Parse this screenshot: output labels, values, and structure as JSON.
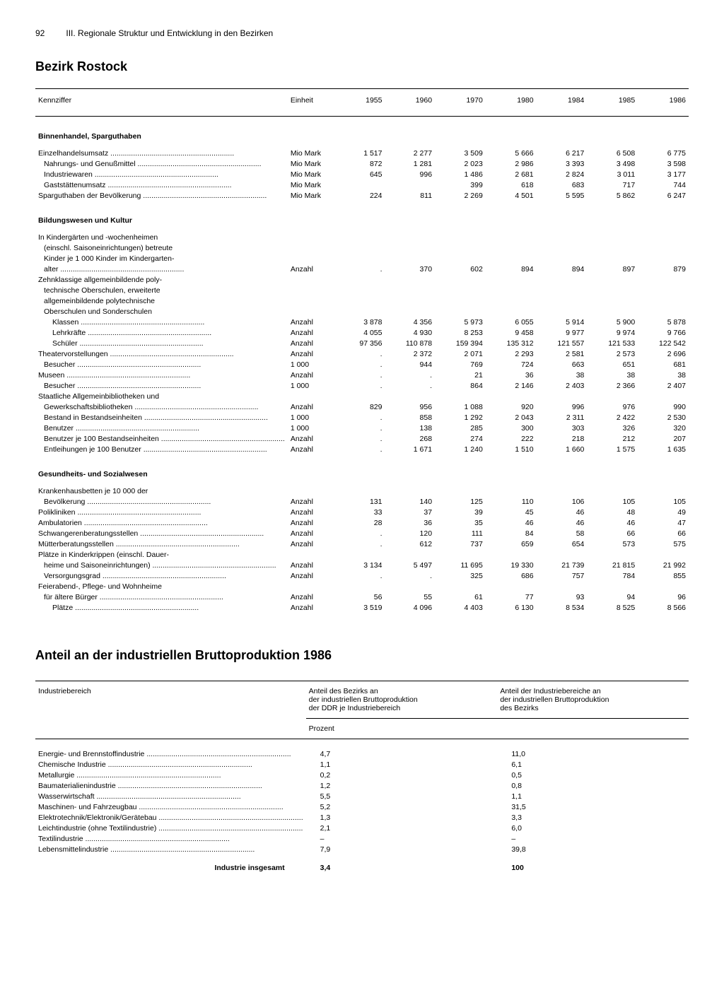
{
  "page_number": "92",
  "chapter": "III. Regionale Struktur und Entwicklung in den Bezirken",
  "section_title": "Bezirk Rostock",
  "table1": {
    "headers": {
      "kennziffer": "Kennziffer",
      "einheit": "Einheit",
      "years": [
        "1955",
        "1960",
        "1970",
        "1980",
        "1984",
        "1985",
        "1986"
      ]
    },
    "sections": [
      {
        "title": "Binnenhandel, Sparguthaben",
        "rows": [
          {
            "label": "Einzelhandelsumsatz",
            "indent": 0,
            "unit": "Mio Mark",
            "vals": [
              "1 517",
              "2 277",
              "3 509",
              "5 666",
              "6 217",
              "6 508",
              "6 775"
            ]
          },
          {
            "label": "Nahrungs- und Genußmittel",
            "indent": 1,
            "unit": "Mio Mark",
            "vals": [
              "872",
              "1 281",
              "2 023",
              "2 986",
              "3 393",
              "3 498",
              "3 598"
            ]
          },
          {
            "label": "Industriewaren",
            "indent": 1,
            "unit": "Mio Mark",
            "vals": [
              "645",
              "996",
              "1 486",
              "2 681",
              "2 824",
              "3 011",
              "3 177"
            ]
          },
          {
            "label": "Gaststättenumsatz",
            "indent": 1,
            "unit": "Mio Mark",
            "vals": [
              "",
              "",
              "399",
              "618",
              "683",
              "717",
              "744"
            ]
          },
          {
            "label": "Sparguthaben der Bevölkerung",
            "indent": 0,
            "unit": "Mio Mark",
            "vals": [
              "224",
              "811",
              "2 269",
              "4 501",
              "5 595",
              "5 862",
              "6 247"
            ]
          }
        ]
      },
      {
        "title": "Bildungswesen und Kultur",
        "rows": [
          {
            "label": "In Kindergärten und -wochenheimen",
            "indent": 0,
            "unit": "",
            "vals": [
              "",
              "",
              "",
              "",
              "",
              "",
              ""
            ],
            "nodots": true
          },
          {
            "label": "(einschl. Saisoneinrichtungen) betreute",
            "indent": 1,
            "unit": "",
            "vals": [
              "",
              "",
              "",
              "",
              "",
              "",
              ""
            ],
            "nodots": true
          },
          {
            "label": "Kinder je 1 000 Kinder im Kindergarten-",
            "indent": 1,
            "unit": "",
            "vals": [
              "",
              "",
              "",
              "",
              "",
              "",
              ""
            ],
            "nodots": true
          },
          {
            "label": "alter",
            "indent": 1,
            "unit": "Anzahl",
            "vals": [
              ".",
              "370",
              "602",
              "894",
              "894",
              "897",
              "879"
            ]
          },
          {
            "label": "Zehnklassige allgemeinbildende poly-",
            "indent": 0,
            "unit": "",
            "vals": [
              "",
              "",
              "",
              "",
              "",
              "",
              ""
            ],
            "nodots": true
          },
          {
            "label": "technische Oberschulen, erweiterte",
            "indent": 1,
            "unit": "",
            "vals": [
              "",
              "",
              "",
              "",
              "",
              "",
              ""
            ],
            "nodots": true
          },
          {
            "label": "allgemeinbildende polytechnische",
            "indent": 1,
            "unit": "",
            "vals": [
              "",
              "",
              "",
              "",
              "",
              "",
              ""
            ],
            "nodots": true
          },
          {
            "label": "Oberschulen und Sonderschulen",
            "indent": 1,
            "unit": "",
            "vals": [
              "",
              "",
              "",
              "",
              "",
              "",
              ""
            ],
            "nodots": true
          },
          {
            "label": "Klassen",
            "indent": 2,
            "unit": "Anzahl",
            "vals": [
              "3 878",
              "4 356",
              "5 973",
              "6 055",
              "5 914",
              "5 900",
              "5 878"
            ]
          },
          {
            "label": "Lehrkräfte",
            "indent": 2,
            "unit": "Anzahl",
            "vals": [
              "4 055",
              "4 930",
              "8 253",
              "9 458",
              "9 977",
              "9 974",
              "9 766"
            ]
          },
          {
            "label": "Schüler",
            "indent": 2,
            "unit": "Anzahl",
            "vals": [
              "97 356",
              "110 878",
              "159 394",
              "135 312",
              "121 557",
              "121 533",
              "122 542"
            ]
          },
          {
            "label": "Theatervorstellungen",
            "indent": 0,
            "unit": "Anzahl",
            "vals": [
              ".",
              "2 372",
              "2 071",
              "2 293",
              "2 581",
              "2 573",
              "2 696"
            ]
          },
          {
            "label": "Besucher",
            "indent": 1,
            "unit": "1 000",
            "vals": [
              ".",
              "944",
              "769",
              "724",
              "663",
              "651",
              "681"
            ]
          },
          {
            "label": "Museen",
            "indent": 0,
            "unit": "Anzahl",
            "vals": [
              ".",
              ".",
              "21",
              "36",
              "38",
              "38",
              "38"
            ]
          },
          {
            "label": "Besucher",
            "indent": 1,
            "unit": "1 000",
            "vals": [
              ".",
              ".",
              "864",
              "2 146",
              "2 403",
              "2 366",
              "2 407"
            ]
          },
          {
            "label": "Staatliche Allgemeinbibliotheken und",
            "indent": 0,
            "unit": "",
            "vals": [
              "",
              "",
              "",
              "",
              "",
              "",
              ""
            ],
            "nodots": true
          },
          {
            "label": "Gewerkschaftsbibliotheken",
            "indent": 1,
            "unit": "Anzahl",
            "vals": [
              "829",
              "956",
              "1 088",
              "920",
              "996",
              "976",
              "990"
            ]
          },
          {
            "label": "Bestand in Bestandseinheiten",
            "indent": 1,
            "unit": "1 000",
            "vals": [
              ".",
              "858",
              "1 292",
              "2 043",
              "2 311",
              "2 422",
              "2 530"
            ]
          },
          {
            "label": "Benutzer",
            "indent": 1,
            "unit": "1 000",
            "vals": [
              ".",
              "138",
              "285",
              "300",
              "303",
              "326",
              "320"
            ]
          },
          {
            "label": "Benutzer je 100 Bestandseinheiten",
            "indent": 1,
            "unit": "Anzahl",
            "vals": [
              ".",
              "268",
              "274",
              "222",
              "218",
              "212",
              "207"
            ]
          },
          {
            "label": "Entleihungen je 100 Benutzer",
            "indent": 1,
            "unit": "Anzahl",
            "vals": [
              ".",
              "1 671",
              "1 240",
              "1 510",
              "1 660",
              "1 575",
              "1 635"
            ]
          }
        ]
      },
      {
        "title": "Gesundheits- und Sozialwesen",
        "rows": [
          {
            "label": "Krankenhausbetten je 10 000 der",
            "indent": 0,
            "unit": "",
            "vals": [
              "",
              "",
              "",
              "",
              "",
              "",
              ""
            ],
            "nodots": true
          },
          {
            "label": "Bevölkerung",
            "indent": 1,
            "unit": "Anzahl",
            "vals": [
              "131",
              "140",
              "125",
              "110",
              "106",
              "105",
              "105"
            ]
          },
          {
            "label": "Polikliniken",
            "indent": 0,
            "unit": "Anzahl",
            "vals": [
              "33",
              "37",
              "39",
              "45",
              "46",
              "48",
              "49"
            ]
          },
          {
            "label": "Ambulatorien",
            "indent": 0,
            "unit": "Anzahl",
            "vals": [
              "28",
              "36",
              "35",
              "46",
              "46",
              "46",
              "47"
            ]
          },
          {
            "label": "Schwangerenberatungsstellen",
            "indent": 0,
            "unit": "Anzahl",
            "vals": [
              ".",
              "120",
              "111",
              "84",
              "58",
              "66",
              "66"
            ]
          },
          {
            "label": "Mütterberatungsstellen",
            "indent": 0,
            "unit": "Anzahl",
            "vals": [
              ".",
              "612",
              "737",
              "659",
              "654",
              "573",
              "575"
            ]
          },
          {
            "label": "Plätze in Kinderkrippen (einschl. Dauer-",
            "indent": 0,
            "unit": "",
            "vals": [
              "",
              "",
              "",
              "",
              "",
              "",
              ""
            ],
            "nodots": true
          },
          {
            "label": "heime und Saisoneinrichtungen)",
            "indent": 1,
            "unit": "Anzahl",
            "vals": [
              "3 134",
              "5 497",
              "11 695",
              "19 330",
              "21 739",
              "21 815",
              "21 992"
            ]
          },
          {
            "label": "Versorgungsgrad",
            "indent": 1,
            "unit": "Anzahl",
            "vals": [
              ".",
              ".",
              "325",
              "686",
              "757",
              "784",
              "855"
            ]
          },
          {
            "label": "Feierabend-, Pflege- und Wohnheime",
            "indent": 0,
            "unit": "",
            "vals": [
              "",
              "",
              "",
              "",
              "",
              "",
              ""
            ],
            "nodots": true
          },
          {
            "label": "für ältere Bürger",
            "indent": 1,
            "unit": "Anzahl",
            "vals": [
              "56",
              "55",
              "61",
              "77",
              "93",
              "94",
              "96"
            ]
          },
          {
            "label": "Plätze",
            "indent": 2,
            "unit": "Anzahl",
            "vals": [
              "3 519",
              "4 096",
              "4 403",
              "6 130",
              "8 534",
              "8 525",
              "8 566"
            ]
          }
        ]
      }
    ]
  },
  "table2_title": "Anteil an der industriellen Bruttoproduktion 1986",
  "table2": {
    "headers": {
      "col1": "Industriebereich",
      "col2": "Anteil des Bezirks an\nder industriellen Bruttoproduktion\nder DDR je Industriebereich",
      "col3": "Anteil der Industriebereiche an\nder industriellen Bruttoproduktion\ndes Bezirks",
      "prozent": "Prozent"
    },
    "rows": [
      {
        "label": "Energie- und Brennstoffindustrie",
        "v1": "4,7",
        "v2": "11,0"
      },
      {
        "label": "Chemische Industrie",
        "v1": "1,1",
        "v2": "6,1"
      },
      {
        "label": "Metallurgie",
        "v1": "0,2",
        "v2": "0,5"
      },
      {
        "label": "Baumaterialienindustrie",
        "v1": "1,2",
        "v2": "0,8"
      },
      {
        "label": "Wasserwirtschaft",
        "v1": "5,5",
        "v2": "1,1"
      },
      {
        "label": "Maschinen- und Fahrzeugbau",
        "v1": "5,2",
        "v2": "31,5"
      },
      {
        "label": "Elektrotechnik/Elektronik/Gerätebau",
        "v1": "1,3",
        "v2": "3,3"
      },
      {
        "label": "Leichtindustrie (ohne Textilindustrie)",
        "v1": "2,1",
        "v2": "6,0"
      },
      {
        "label": "Textilindustrie",
        "v1": "–",
        "v2": "–"
      },
      {
        "label": "Lebensmittelindustrie",
        "v1": "7,9",
        "v2": "39,8"
      }
    ],
    "total": {
      "label": "Industrie insgesamt",
      "v1": "3,4",
      "v2": "100"
    }
  }
}
